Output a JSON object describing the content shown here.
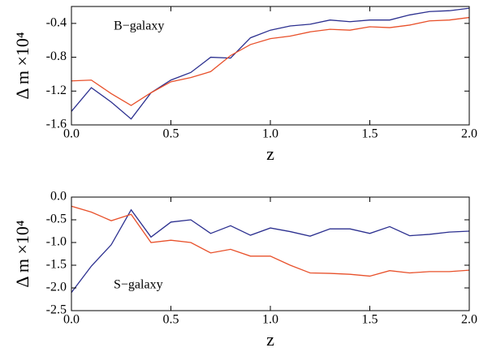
{
  "chart_data": [
    {
      "type": "line",
      "annotation": "B−galaxy",
      "x_label": "z",
      "y_label": "Δ m ×10⁴",
      "x": [
        0,
        0.1,
        0.2,
        0.3,
        0.4,
        0.5,
        0.6,
        0.7,
        0.8,
        0.9,
        1.0,
        1.1,
        1.2,
        1.3,
        1.4,
        1.5,
        1.6,
        1.7,
        1.8,
        1.9,
        2.0
      ],
      "series": [
        {
          "color": "#2b2f8f",
          "values": [
            -1.44,
            -1.16,
            -1.33,
            -1.53,
            -1.22,
            -1.07,
            -0.98,
            -0.8,
            -0.81,
            -0.57,
            -0.48,
            -0.43,
            -0.41,
            -0.36,
            -0.38,
            -0.36,
            -0.36,
            -0.3,
            -0.26,
            -0.25,
            -0.22
          ]
        },
        {
          "color": "#e8502a",
          "values": [
            -1.08,
            -1.07,
            -1.23,
            -1.37,
            -1.22,
            -1.09,
            -1.04,
            -0.97,
            -0.78,
            -0.65,
            -0.58,
            -0.55,
            -0.5,
            -0.47,
            -0.48,
            -0.44,
            -0.45,
            -0.42,
            -0.37,
            -0.36,
            -0.33
          ]
        }
      ],
      "xlim": [
        0,
        2
      ],
      "xticks": [
        {
          "value": 0,
          "label": "0.0"
        },
        0.5,
        {
          "value": 1,
          "label": "1.0"
        },
        1.5,
        {
          "value": 2,
          "label": "2.0"
        }
      ],
      "ylim": [
        -1.6,
        -0.2
      ],
      "yticks": [
        -1.6,
        -1.2,
        -0.8,
        -0.4
      ]
    },
    {
      "type": "line",
      "annotation": "S−galaxy",
      "x_label": "z",
      "y_label": "Δ m ×10⁴",
      "x": [
        0,
        0.1,
        0.2,
        0.3,
        0.4,
        0.5,
        0.6,
        0.7,
        0.8,
        0.9,
        1.0,
        1.1,
        1.2,
        1.3,
        1.4,
        1.5,
        1.6,
        1.7,
        1.8,
        1.9,
        2.0
      ],
      "series": [
        {
          "color": "#2b2f8f",
          "values": [
            -2.1,
            -1.52,
            -1.05,
            -0.28,
            -0.88,
            -0.55,
            -0.5,
            -0.8,
            -0.63,
            -0.84,
            -0.68,
            -0.76,
            -0.86,
            -0.7,
            -0.7,
            -0.8,
            -0.65,
            -0.85,
            -0.82,
            -0.77,
            -0.75
          ]
        },
        {
          "color": "#e8502a",
          "values": [
            -0.2,
            -0.33,
            -0.52,
            -0.38,
            -1.0,
            -0.95,
            -1.0,
            -1.23,
            -1.15,
            -1.3,
            -1.3,
            -1.5,
            -1.67,
            -1.68,
            -1.7,
            -1.74,
            -1.62,
            -1.67,
            -1.64,
            -1.64,
            -1.61
          ]
        }
      ],
      "xlim": [
        0,
        2
      ],
      "xticks": [
        {
          "value": 0,
          "label": "0.0"
        },
        0.5,
        {
          "value": 1,
          "label": "1.0"
        },
        1.5,
        {
          "value": 2,
          "label": "2.0"
        }
      ],
      "ylim": [
        -2.5,
        0
      ],
      "yticks": [
        -2.5,
        {
          "value": -2,
          "label": "-2.0"
        },
        -1.5,
        {
          "value": -1,
          "label": "-1.0"
        },
        -0.5,
        {
          "value": 0,
          "label": "0.0"
        }
      ]
    }
  ]
}
